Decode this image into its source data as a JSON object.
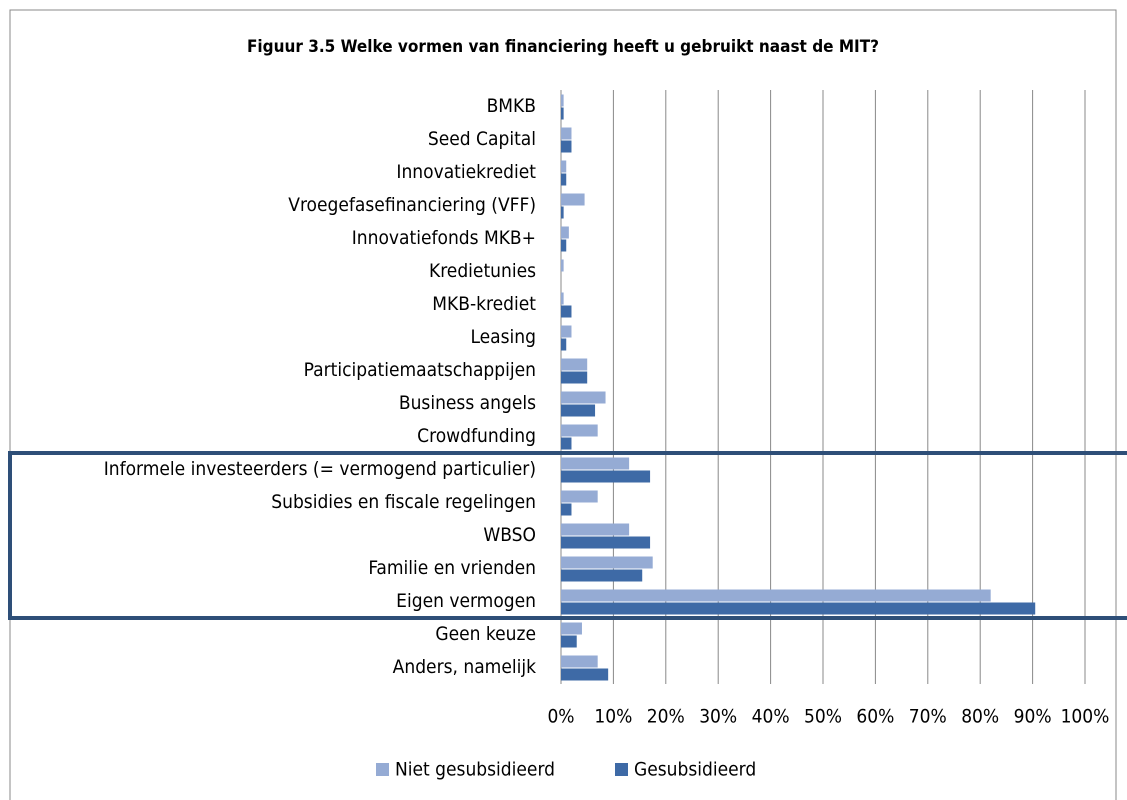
{
  "chart_data": {
    "type": "bar",
    "orientation": "horizontal",
    "title": "Figuur 3.5 Welke vormen van financiering heeft u gebruikt naast de MIT?",
    "categories": [
      "BMKB",
      "Seed Capital",
      "Innovatiekrediet",
      "Vroegefasefinanciering (VFF)",
      "Innovatiefonds MKB+",
      "Kredietunies",
      "MKB-krediet",
      "Leasing",
      "Participatiemaatschappijen",
      "Business angels",
      "Crowdfunding",
      "Informele investeerders (= vermogend particulier)",
      "Subsidies en fiscale regelingen",
      "WBSO",
      "Familie en vrienden",
      "Eigen vermogen",
      "Geen keuze",
      "Anders, namelijk"
    ],
    "series": [
      {
        "name": "Niet gesubsidieerd",
        "color": "#95abd4",
        "values": [
          0.5,
          2,
          1,
          4.5,
          1.5,
          0.5,
          0.5,
          2,
          5,
          8.5,
          7,
          13,
          7,
          13,
          17.5,
          82,
          4,
          7
        ]
      },
      {
        "name": "Gesubsidieerd",
        "color": "#3e6aa6",
        "values": [
          0.5,
          2,
          1,
          0.5,
          1,
          0,
          2,
          1,
          5,
          6.5,
          2,
          17,
          2,
          17,
          15.5,
          90.5,
          3,
          9
        ]
      }
    ],
    "xlim": [
      0,
      100
    ],
    "xticks": [
      {
        "value": 0,
        "label": "0%"
      },
      {
        "value": 10,
        "label": "10%"
      },
      {
        "value": 20,
        "label": "20%"
      },
      {
        "value": 30,
        "label": "30%"
      },
      {
        "value": 40,
        "label": "40%"
      },
      {
        "value": 50,
        "label": "50%"
      },
      {
        "value": 60,
        "label": "60%"
      },
      {
        "value": 70,
        "label": "70%"
      },
      {
        "value": 80,
        "label": "80%"
      },
      {
        "value": 90,
        "label": "90%"
      },
      {
        "value": 100,
        "label": "100%"
      }
    ],
    "grid": true,
    "legend": "bottom"
  }
}
